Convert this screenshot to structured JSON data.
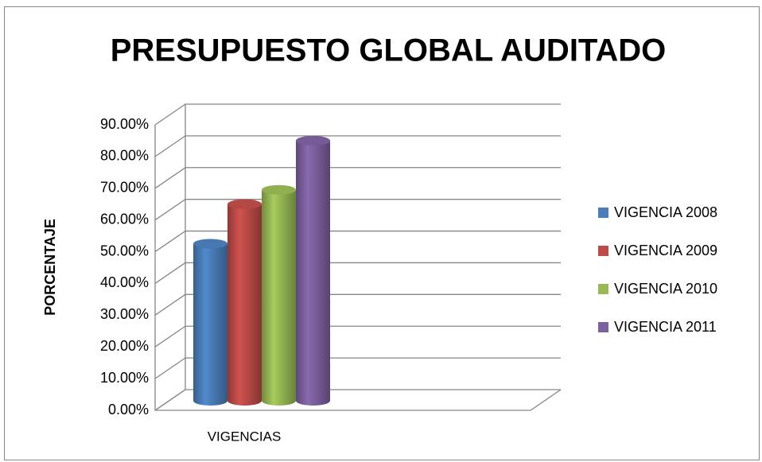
{
  "chart_data": {
    "type": "bar3d",
    "title": "PRESUPUESTO GLOBAL AUDITADO",
    "y_label": "PORCENTAJE",
    "categories": [
      "VIGENCIAS"
    ],
    "series": [
      {
        "name": "VIGENCIA 2008",
        "color": "#4a7ebb",
        "values": [
          49.5
        ]
      },
      {
        "name": "VIGENCIA 2009",
        "color": "#be4b48",
        "values": [
          62
        ]
      },
      {
        "name": "VIGENCIA 2010",
        "color": "#98b954",
        "values": [
          66.5
        ]
      },
      {
        "name": "VIGENCIA 2011",
        "color": "#7d60a0",
        "values": [
          82
        ]
      }
    ],
    "ylim": [
      0,
      90
    ],
    "yticks": [
      {
        "value": 0,
        "label": "0.00%"
      },
      {
        "value": 10,
        "label": "10.00%"
      },
      {
        "value": 20,
        "label": "20.00%"
      },
      {
        "value": 30,
        "label": "30.00%"
      },
      {
        "value": 40,
        "label": "40.00%"
      },
      {
        "value": 50,
        "label": "50.00%"
      },
      {
        "value": 60,
        "label": "60.00%"
      },
      {
        "value": 70,
        "label": "70.00%"
      },
      {
        "value": 80,
        "label": "80.00%"
      },
      {
        "value": 90,
        "label": "90.00%"
      }
    ],
    "grid": true,
    "legend": "right"
  }
}
